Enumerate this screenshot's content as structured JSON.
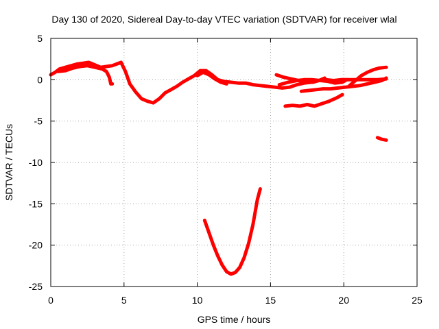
{
  "chart_data": {
    "type": "line",
    "title": "Day 130 of 2020, Sidereal Day-to-day VTEC variation (SDTVAR) for receiver wlal",
    "xlabel": "GPS time / hours",
    "ylabel": "SDTVAR / TECUs",
    "xlim": [
      0,
      25
    ],
    "ylim": [
      -25,
      5
    ],
    "xticks": [
      0,
      5,
      10,
      15,
      20,
      25
    ],
    "yticks": [
      -25,
      -20,
      -15,
      -10,
      -5,
      0,
      5
    ],
    "grid": true,
    "series_color": "#ff0000",
    "series": [
      {
        "name": "segment-1",
        "points": [
          [
            0.0,
            0.6
          ],
          [
            0.3,
            0.9
          ],
          [
            0.6,
            1.3
          ],
          [
            1.0,
            1.5
          ],
          [
            1.4,
            1.7
          ],
          [
            1.8,
            1.9
          ],
          [
            2.2,
            2.0
          ],
          [
            2.6,
            2.1
          ],
          [
            3.0,
            1.8
          ],
          [
            3.4,
            1.5
          ],
          [
            3.8,
            1.6
          ],
          [
            4.2,
            1.7
          ],
          [
            4.5,
            1.9
          ],
          [
            4.8,
            2.1
          ],
          [
            5.1,
            1.0
          ],
          [
            5.4,
            -0.5
          ],
          [
            5.8,
            -1.5
          ],
          [
            6.2,
            -2.3
          ],
          [
            6.6,
            -2.6
          ],
          [
            7.0,
            -2.8
          ],
          [
            7.4,
            -2.3
          ],
          [
            7.8,
            -1.6
          ],
          [
            8.2,
            -1.2
          ],
          [
            8.6,
            -0.8
          ],
          [
            9.0,
            -0.3
          ],
          [
            9.4,
            0.1
          ],
          [
            9.8,
            0.5
          ],
          [
            10.2,
            1.1
          ],
          [
            10.6,
            1.1
          ],
          [
            11.0,
            0.6
          ],
          [
            11.4,
            0.0
          ],
          [
            11.8,
            -0.2
          ],
          [
            12.3,
            -0.3
          ],
          [
            12.8,
            -0.4
          ],
          [
            13.3,
            -0.4
          ],
          [
            13.8,
            -0.6
          ],
          [
            14.3,
            -0.7
          ],
          [
            14.8,
            -0.8
          ],
          [
            15.3,
            -0.9
          ],
          [
            15.8,
            -1.0
          ],
          [
            16.3,
            -0.9
          ],
          [
            16.8,
            -0.6
          ],
          [
            17.3,
            -0.4
          ],
          [
            17.8,
            -0.3
          ],
          [
            18.3,
            -0.1
          ],
          [
            18.8,
            0.0
          ],
          [
            19.3,
            -0.1
          ],
          [
            19.8,
            0.0
          ],
          [
            20.3,
            0.0
          ],
          [
            20.8,
            0.0
          ],
          [
            21.3,
            0.0
          ],
          [
            21.8,
            0.0
          ],
          [
            22.3,
            0.0
          ],
          [
            22.9,
            0.1
          ]
        ]
      },
      {
        "name": "segment-2",
        "points": [
          [
            0.5,
            1.0
          ],
          [
            1.0,
            1.1
          ],
          [
            1.5,
            1.4
          ],
          [
            2.0,
            1.6
          ],
          [
            2.5,
            1.7
          ],
          [
            3.0,
            1.5
          ],
          [
            3.5,
            1.3
          ],
          [
            3.8,
            1.0
          ],
          [
            4.0,
            0.3
          ],
          [
            4.1,
            -0.5
          ],
          [
            4.2,
            -0.5
          ]
        ]
      },
      {
        "name": "segment-3",
        "points": [
          [
            10.0,
            0.5
          ],
          [
            10.4,
            0.9
          ],
          [
            10.8,
            0.6
          ],
          [
            11.2,
            0.1
          ],
          [
            11.6,
            -0.3
          ],
          [
            12.0,
            -0.5
          ]
        ]
      },
      {
        "name": "segment-4",
        "points": [
          [
            15.4,
            0.6
          ],
          [
            15.9,
            0.3
          ],
          [
            16.4,
            0.1
          ],
          [
            16.9,
            -0.1
          ],
          [
            17.4,
            -0.2
          ],
          [
            17.9,
            -0.3
          ],
          [
            18.3,
            -0.1
          ],
          [
            18.7,
            0.2
          ]
        ]
      },
      {
        "name": "segment-5",
        "points": [
          [
            15.6,
            -0.6
          ],
          [
            16.2,
            -0.3
          ],
          [
            16.8,
            -0.1
          ],
          [
            17.3,
            0.0
          ],
          [
            17.8,
            0.0
          ],
          [
            18.4,
            -0.1
          ],
          [
            18.9,
            -0.2
          ],
          [
            19.4,
            -0.4
          ],
          [
            19.9,
            -0.3
          ],
          [
            20.2,
            0.0
          ]
        ]
      },
      {
        "name": "segment-6",
        "points": [
          [
            17.1,
            -1.4
          ],
          [
            17.6,
            -1.3
          ],
          [
            18.1,
            -1.2
          ],
          [
            18.6,
            -1.1
          ],
          [
            19.1,
            -1.1
          ],
          [
            19.6,
            -1.0
          ],
          [
            20.1,
            -0.9
          ],
          [
            20.6,
            -0.8
          ],
          [
            21.1,
            -0.7
          ],
          [
            21.6,
            -0.5
          ],
          [
            22.1,
            -0.3
          ],
          [
            22.6,
            -0.1
          ],
          [
            22.9,
            0.2
          ]
        ]
      },
      {
        "name": "segment-7",
        "points": [
          [
            20.4,
            -0.7
          ],
          [
            20.8,
            -0.1
          ],
          [
            21.2,
            0.5
          ],
          [
            21.6,
            0.9
          ],
          [
            22.0,
            1.2
          ],
          [
            22.4,
            1.4
          ],
          [
            22.9,
            1.5
          ]
        ]
      },
      {
        "name": "segment-8",
        "points": [
          [
            16.0,
            -3.2
          ],
          [
            16.5,
            -3.1
          ],
          [
            17.0,
            -3.2
          ],
          [
            17.5,
            -3.0
          ],
          [
            18.0,
            -3.2
          ],
          [
            18.5,
            -2.9
          ],
          [
            19.0,
            -2.6
          ],
          [
            19.5,
            -2.2
          ],
          [
            19.9,
            -1.8
          ]
        ]
      },
      {
        "name": "segment-9",
        "points": [
          [
            10.5,
            -17.0
          ],
          [
            10.8,
            -18.5
          ],
          [
            11.1,
            -20.0
          ],
          [
            11.4,
            -21.3
          ],
          [
            11.7,
            -22.4
          ],
          [
            12.0,
            -23.2
          ],
          [
            12.3,
            -23.5
          ],
          [
            12.6,
            -23.3
          ],
          [
            12.9,
            -22.7
          ],
          [
            13.2,
            -21.5
          ],
          [
            13.5,
            -19.8
          ],
          [
            13.8,
            -17.5
          ],
          [
            14.1,
            -14.5
          ],
          [
            14.3,
            -13.2
          ]
        ]
      },
      {
        "name": "segment-10",
        "points": [
          [
            22.3,
            -7.0
          ],
          [
            22.6,
            -7.2
          ],
          [
            22.9,
            -7.3
          ]
        ]
      }
    ]
  }
}
